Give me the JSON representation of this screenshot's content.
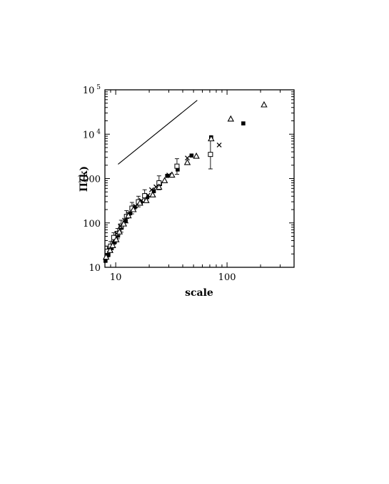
{
  "chart_data": {
    "type": "scatter",
    "xlabel": "scale",
    "ylabel": "Π(k)",
    "xscale": "log",
    "yscale": "log",
    "xlim": [
      8,
      400
    ],
    "ylim": [
      10,
      100000
    ],
    "x_ticks": [
      {
        "value": 10,
        "label": "10"
      },
      {
        "value": 100,
        "label": "100"
      }
    ],
    "y_ticks": [
      {
        "value": 10,
        "label": "10"
      },
      {
        "value": 100,
        "label": "100"
      },
      {
        "value": 1000,
        "label": "1000"
      },
      {
        "value": 10000,
        "label": "10",
        "sup": "4"
      },
      {
        "value": 100000,
        "label": "10",
        "sup": "5"
      }
    ],
    "grid": false,
    "legend": "none",
    "reference_line": {
      "x": [
        10.5,
        54
      ],
      "y": [
        2100,
        58000
      ]
    },
    "series": [
      {
        "marker": "filled-square",
        "points": [
          {
            "x": 8.1,
            "y": 14
          },
          {
            "x": 8.6,
            "y": 19
          },
          {
            "x": 9.2,
            "y": 27
          },
          {
            "x": 9.8,
            "y": 37
          },
          {
            "x": 10.5,
            "y": 52
          },
          {
            "x": 11.3,
            "y": 78
          },
          {
            "x": 12.3,
            "y": 110
          },
          {
            "x": 13.5,
            "y": 165
          },
          {
            "x": 14.8,
            "y": 225
          },
          {
            "x": 16.8,
            "y": 290
          },
          {
            "x": 19.2,
            "y": 380
          },
          {
            "x": 22,
            "y": 520
          },
          {
            "x": 25,
            "y": 750
          },
          {
            "x": 29,
            "y": 1150
          },
          {
            "x": 36,
            "y": 1600
          },
          {
            "x": 48,
            "y": 3300
          },
          {
            "x": 72,
            "y": 8500
          },
          {
            "x": 140,
            "y": 17500
          }
        ]
      },
      {
        "marker": "open-square",
        "points": [
          {
            "x": 8.4,
            "y": 23,
            "err": [
              17,
              30
            ]
          },
          {
            "x": 9.0,
            "y": 30,
            "err": [
              23,
              38
            ]
          },
          {
            "x": 9.6,
            "y": 47,
            "err": [
              36,
              60
            ]
          },
          {
            "x": 10.4,
            "y": 58,
            "err": [
              44,
              75
            ]
          },
          {
            "x": 11.2,
            "y": 85,
            "err": [
              62,
              115
            ]
          },
          {
            "x": 12.5,
            "y": 140,
            "err": [
              100,
              190
            ]
          },
          {
            "x": 14,
            "y": 215,
            "err": [
              160,
              290
            ]
          },
          {
            "x": 16,
            "y": 300,
            "err": [
              230,
              400
            ]
          },
          {
            "x": 18.2,
            "y": 410,
            "err": [
              300,
              560
            ]
          },
          {
            "x": 24.5,
            "y": 800,
            "err": [
              560,
              1150
            ]
          },
          {
            "x": 35.5,
            "y": 1900,
            "err": [
              1250,
              2800
            ]
          },
          {
            "x": 71,
            "y": 3500,
            "err": [
              1650,
              7400
            ]
          }
        ]
      },
      {
        "marker": "cross",
        "points": [
          {
            "x": 8.8,
            "y": 25
          },
          {
            "x": 9.5,
            "y": 36
          },
          {
            "x": 10.2,
            "y": 58
          },
          {
            "x": 11,
            "y": 85
          },
          {
            "x": 12,
            "y": 115
          },
          {
            "x": 13,
            "y": 160
          },
          {
            "x": 15,
            "y": 240
          },
          {
            "x": 17,
            "y": 320
          },
          {
            "x": 19.5,
            "y": 420
          },
          {
            "x": 21,
            "y": 560
          },
          {
            "x": 23,
            "y": 650
          },
          {
            "x": 30,
            "y": 1200
          },
          {
            "x": 44,
            "y": 2900
          },
          {
            "x": 85,
            "y": 5700
          }
        ]
      },
      {
        "marker": "open-triangle",
        "points": [
          {
            "x": 8.2,
            "y": 17
          },
          {
            "x": 8.9,
            "y": 24
          },
          {
            "x": 9.4,
            "y": 31
          },
          {
            "x": 10.1,
            "y": 42
          },
          {
            "x": 10.8,
            "y": 63
          },
          {
            "x": 11.8,
            "y": 95
          },
          {
            "x": 13,
            "y": 145
          },
          {
            "x": 14.4,
            "y": 200
          },
          {
            "x": 16.5,
            "y": 280
          },
          {
            "x": 18.8,
            "y": 320
          },
          {
            "x": 21.5,
            "y": 430
          },
          {
            "x": 24.5,
            "y": 640
          },
          {
            "x": 27.5,
            "y": 900
          },
          {
            "x": 32,
            "y": 1200
          },
          {
            "x": 44,
            "y": 2300
          },
          {
            "x": 53,
            "y": 3200
          },
          {
            "x": 72,
            "y": 7900
          },
          {
            "x": 108,
            "y": 22000
          },
          {
            "x": 215,
            "y": 46000
          }
        ]
      }
    ]
  }
}
